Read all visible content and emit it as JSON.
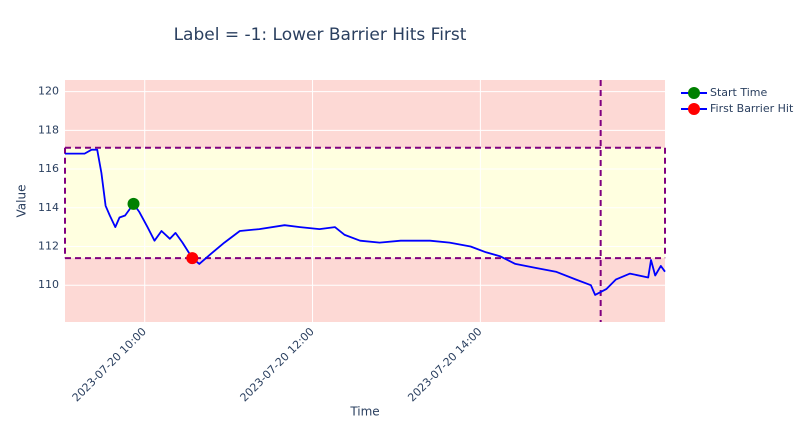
{
  "chart_data": {
    "type": "line",
    "title": "Label = -1: Lower Barrier Hits First",
    "xlabel": "Time",
    "ylabel": "Value",
    "xlim": [
      "2023-07-20 09:03",
      "2023-07-20 16:12"
    ],
    "xticks": [
      "2023-07-20 10:00",
      "2023-07-20 12:00",
      "2023-07-20 14:00"
    ],
    "ylim": [
      108.1,
      120.6
    ],
    "yticks": [
      110,
      112,
      114,
      116,
      118,
      120
    ],
    "grid": true,
    "line_color": "blue",
    "x": [
      "2023-07-20 09:03",
      "2023-07-20 09:17",
      "2023-07-20 09:22",
      "2023-07-20 09:26",
      "2023-07-20 09:29",
      "2023-07-20 09:32",
      "2023-07-20 09:35",
      "2023-07-20 09:39",
      "2023-07-20 09:42",
      "2023-07-20 09:46",
      "2023-07-20 09:52",
      "2023-07-20 09:56",
      "2023-07-20 10:02",
      "2023-07-20 10:07",
      "2023-07-20 10:12",
      "2023-07-20 10:18",
      "2023-07-20 10:22",
      "2023-07-20 10:27",
      "2023-07-20 10:34",
      "2023-07-20 10:39",
      "2023-07-20 10:47",
      "2023-07-20 10:57",
      "2023-07-20 11:08",
      "2023-07-20 11:22",
      "2023-07-20 11:40",
      "2023-07-20 11:51",
      "2023-07-20 12:05",
      "2023-07-20 12:16",
      "2023-07-20 12:23",
      "2023-07-20 12:34",
      "2023-07-20 12:48",
      "2023-07-20 13:03",
      "2023-07-20 13:24",
      "2023-07-20 13:38",
      "2023-07-20 13:53",
      "2023-07-20 14:04",
      "2023-07-20 14:14",
      "2023-07-20 14:25",
      "2023-07-20 14:39",
      "2023-07-20 14:54",
      "2023-07-20 15:08",
      "2023-07-20 15:19",
      "2023-07-20 15:22",
      "2023-07-20 15:30",
      "2023-07-20 15:37",
      "2023-07-20 15:47",
      "2023-07-20 16:00",
      "2023-07-20 16:02",
      "2023-07-20 16:05",
      "2023-07-20 16:09",
      "2023-07-20 16:12"
    ],
    "values": [
      116.8,
      116.8,
      117.0,
      117.0,
      115.8,
      114.1,
      113.6,
      113.0,
      113.5,
      113.6,
      114.2,
      113.8,
      113.0,
      112.3,
      112.8,
      112.4,
      112.7,
      112.2,
      111.4,
      111.1,
      111.6,
      112.2,
      112.8,
      112.9,
      113.1,
      113.0,
      112.9,
      113.0,
      112.6,
      112.3,
      112.2,
      112.3,
      112.3,
      112.2,
      112.0,
      111.7,
      111.5,
      111.1,
      110.9,
      110.7,
      110.3,
      110.0,
      109.5,
      109.8,
      110.3,
      110.6,
      110.4,
      111.3,
      110.5,
      111.0,
      110.7
    ],
    "upper_barrier": 117.1,
    "lower_barrier": 111.4,
    "vertical_barrier": "2023-07-20 15:26",
    "markers": [
      {
        "name": "Start Time",
        "color": "green",
        "x": [
          "2023-07-20 09:52"
        ],
        "values": [
          114.2
        ]
      },
      {
        "name": "First Barrier Hit",
        "color": "red",
        "x": [
          "2023-07-20 10:34"
        ],
        "values": [
          111.4
        ]
      }
    ]
  }
}
